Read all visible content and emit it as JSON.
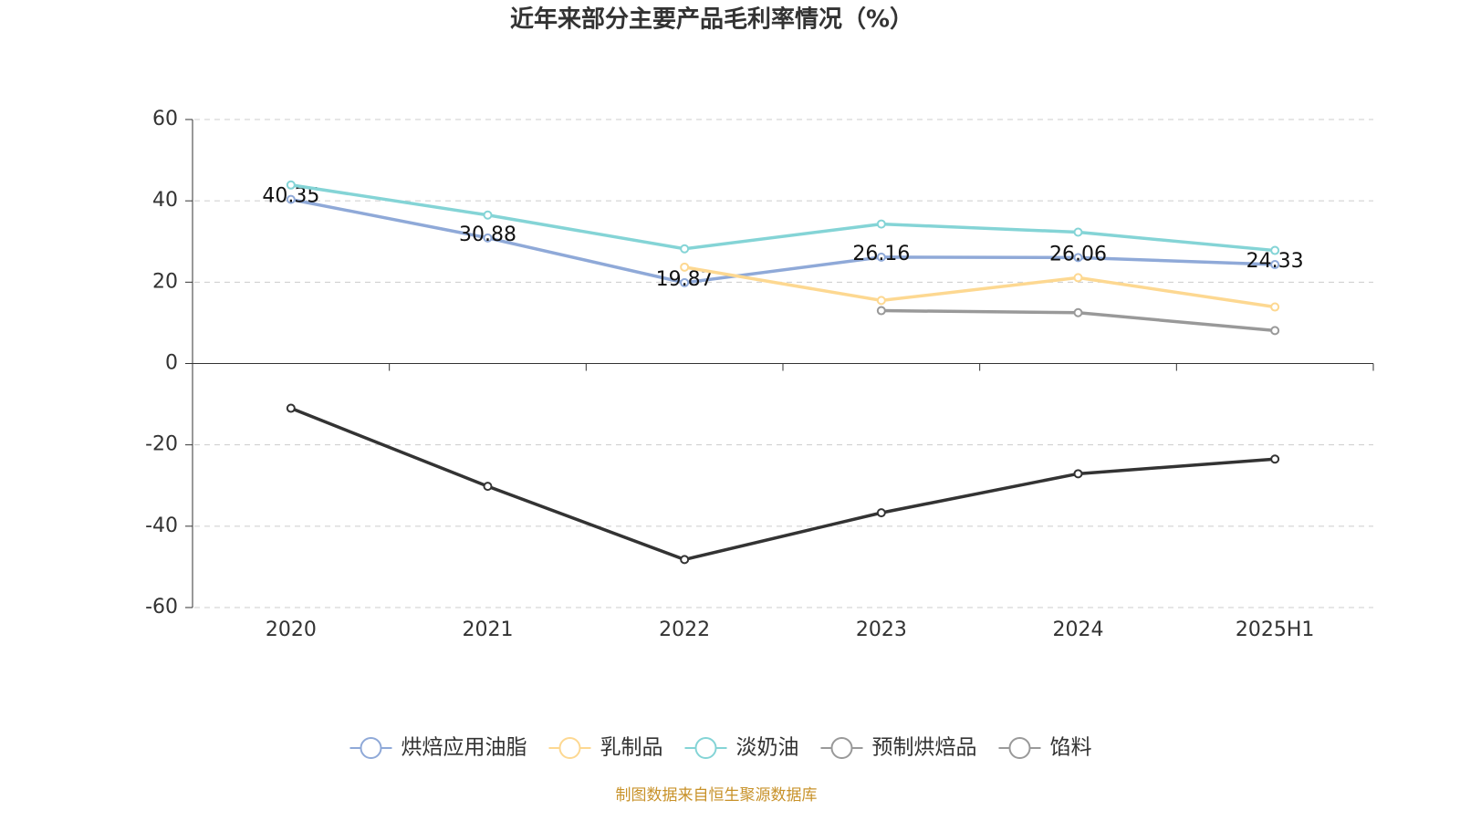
{
  "chart_data": {
    "type": "line",
    "title": "近年来部分主要产品毛利率情况（%）",
    "categories": [
      "2020",
      "2021",
      "2022",
      "2023",
      "2024",
      "2025H1"
    ],
    "series": [
      {
        "name": "烘焙应用油脂",
        "color": "#8fa9d8",
        "values": [
          40.35,
          30.88,
          19.87,
          26.16,
          26.06,
          24.33
        ],
        "data_labels": true
      },
      {
        "name": "乳制品",
        "color": "#fdd891",
        "values": [
          null,
          null,
          23.7,
          15.5,
          21.1,
          13.9
        ]
      },
      {
        "name": "淡奶油",
        "color": "#84d4d6",
        "values": [
          43.9,
          36.5,
          28.2,
          34.3,
          32.3,
          27.8
        ]
      },
      {
        "name": "预制烘焙品",
        "color": "#999999",
        "values": [
          null,
          null,
          null,
          13.0,
          12.5,
          8.1
        ]
      },
      {
        "name": "馅料",
        "color": "#333333",
        "legend_color": "#999999",
        "values": [
          -11.0,
          -30.2,
          -48.2,
          -36.7,
          -27.1,
          -23.5
        ]
      }
    ],
    "ylim": [
      -60,
      60
    ],
    "yticks": [
      -60,
      -40,
      -20,
      0,
      20,
      40,
      60
    ],
    "grid": true,
    "source": "制图数据来自恒生聚源数据库"
  }
}
